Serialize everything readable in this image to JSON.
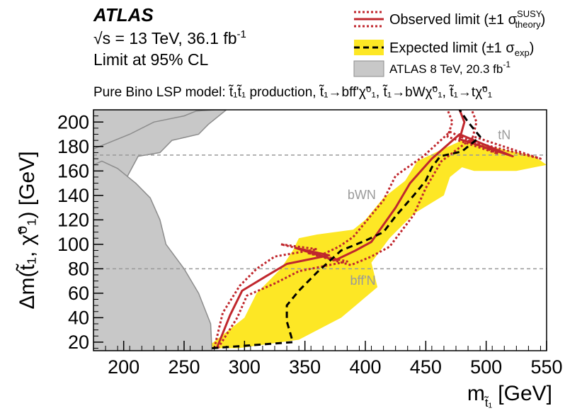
{
  "chart_data": {
    "type": "area",
    "experiment": "ATLAS",
    "energy_line": {
      "prefix": "√s = 13 TeV, 36.1 fb",
      "sup": "-1"
    },
    "cl_line": "Limit at 95% CL",
    "model_line": "Pure Bino LSP model: t̃₁t̃₁ production, t̃₁→bff'χ̃⁰₁, t̃₁→bWχ̃⁰₁, t̃₁→tχ̃⁰₁",
    "xlabel": "m",
    "xlabel_sub": "t̃₁",
    "xlabel_unit": "[GeV]",
    "ylabel": "Δm(t̃₁, χ̃⁰₁) [GeV]",
    "xlim": [
      175,
      550
    ],
    "ylim": [
      13,
      210
    ],
    "x_ticks": [
      200,
      250,
      300,
      350,
      400,
      450,
      500,
      550
    ],
    "y_ticks": [
      20,
      40,
      60,
      80,
      100,
      120,
      140,
      160,
      180,
      200
    ],
    "boundaries": [
      {
        "y": 173,
        "label": "tN",
        "label_x": 515,
        "label_y": 186
      },
      {
        "y": 80,
        "label": "bff'N",
        "label_x": 398,
        "label_y": 67
      },
      {
        "label": "bWN",
        "label_x": 397,
        "label_y": 137
      }
    ],
    "legend": {
      "observed": {
        "text": "Observed limit (±1 σ",
        "sup": "SUSY",
        "sub": "theory",
        "close": ")"
      },
      "expected": {
        "text": "Expected limit (±1 σ",
        "sub": "exp",
        "close": ")"
      },
      "run1": {
        "text": "ATLAS 8 TeV, 20.3 fb",
        "sup": "-1"
      }
    },
    "colors": {
      "observed": "#c0272d",
      "expected": "#000000",
      "band": "#fde725",
      "run1": "#c8c8c8",
      "run1_edge": "#8c8c8c",
      "boundary": "#999999"
    },
    "series": [
      {
        "name": "Observed limit",
        "style": "solid",
        "x": [
          277,
          288,
          298,
          318,
          335,
          370,
          342,
          375,
          392,
          405,
          425,
          437,
          455,
          478,
          522,
          478,
          482,
          478
        ],
        "y": [
          15,
          42,
          62,
          74,
          84,
          91,
          97,
          87,
          95,
          102,
          130,
          150,
          170,
          190,
          172,
          186,
          200,
          210
        ]
      },
      {
        "name": "Observed −1σ theory",
        "style": "dotted",
        "x": [
          275,
          282,
          296,
          310,
          325,
          360,
          330,
          365,
          378,
          390,
          415,
          425,
          448,
          470,
          510,
          468,
          472,
          468
        ],
        "y": [
          15,
          44,
          66,
          80,
          90,
          96,
          100,
          92,
          98,
          106,
          136,
          156,
          172,
          192,
          174,
          188,
          200,
          210
        ]
      },
      {
        "name": "Observed +1σ theory",
        "style": "dotted",
        "x": [
          278,
          294,
          302,
          325,
          345,
          385,
          352,
          388,
          405,
          420,
          440,
          450,
          463,
          490,
          545,
          488,
          492,
          488
        ],
        "y": [
          15,
          40,
          58,
          68,
          78,
          86,
          93,
          83,
          90,
          98,
          124,
          146,
          168,
          188,
          170,
          184,
          200,
          210
        ]
      },
      {
        "name": "Expected limit",
        "style": "dashed",
        "x": [
          273,
          340,
          335,
          335,
          345,
          360,
          380,
          400,
          415,
          425,
          440,
          450,
          455,
          462,
          480,
          495,
          485,
          478
        ],
        "y": [
          15,
          20,
          37,
          50,
          62,
          77,
          95,
          103,
          110,
          123,
          140,
          152,
          163,
          172,
          176,
          188,
          200,
          210
        ]
      },
      {
        "name": "Expected ±1σ exp (lower edge)",
        "x": [
          268,
          300,
          310,
          330,
          340,
          345,
          360,
          390,
          400,
          415,
          433,
          443,
          460,
          480,
          540
        ],
        "y": [
          15,
          40,
          60,
          80,
          95,
          105,
          108,
          112,
          120,
          138,
          152,
          168,
          176,
          185,
          172
        ]
      },
      {
        "name": "Expected ±1σ exp (upper edge)",
        "x": [
          295,
          345,
          380,
          410,
          405,
          420,
          440,
          465,
          470,
          480,
          490,
          525,
          550
        ],
        "y": [
          15,
          22,
          40,
          65,
          85,
          105,
          125,
          140,
          155,
          163,
          160,
          160,
          165
        ]
      }
    ],
    "exclusion_run1": [
      {
        "x": [
          175,
          178,
          190,
          200,
          212,
          230,
          240,
          262,
          270,
          285
        ],
        "y": [
          13,
          90,
          118,
          150,
          172,
          175,
          185,
          190,
          198,
          210
        ]
      },
      {
        "x": [
          175,
          182,
          195,
          210,
          222,
          230,
          235,
          250,
          262,
          272,
          273
        ],
        "y": [
          165,
          168,
          162,
          150,
          138,
          120,
          100,
          80,
          60,
          35,
          13
        ]
      },
      {
        "x": [
          175,
          205,
          225,
          250,
          260,
          275
        ],
        "y": [
          178,
          190,
          200,
          205,
          209,
          210
        ]
      }
    ]
  }
}
